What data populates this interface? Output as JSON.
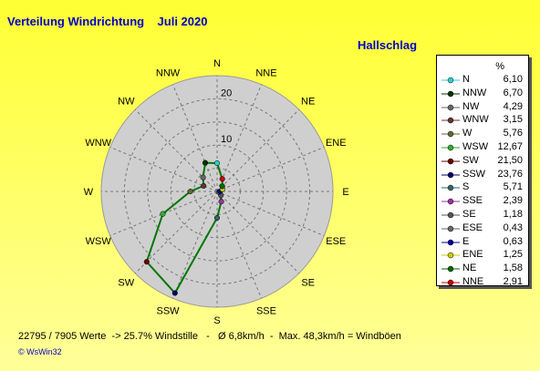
{
  "header": {
    "title": "Verteilung Windrichtung    Juli 2020",
    "station": "Hallschlag"
  },
  "chart_data": {
    "type": "polar-line",
    "directions": [
      "N",
      "NNW",
      "NW",
      "WNW",
      "W",
      "WSW",
      "SW",
      "SSW",
      "S",
      "SSE",
      "SE",
      "ESE",
      "E",
      "ENE",
      "NE",
      "NNE"
    ],
    "compass_labels": [
      "N",
      "NNE",
      "NE",
      "ENE",
      "E",
      "ESE",
      "SE",
      "SSE",
      "S",
      "SSW",
      "SW",
      "WSW",
      "W",
      "WNW",
      "NW",
      "NNW"
    ],
    "values": [
      6.1,
      6.7,
      4.29,
      3.15,
      5.76,
      12.67,
      21.5,
      23.76,
      5.71,
      2.39,
      1.18,
      0.43,
      0.63,
      1.25,
      1.58,
      2.91
    ],
    "unit": "%",
    "r_max": 25,
    "rings": [
      5,
      10,
      15,
      20,
      25
    ],
    "ring_labels": [
      {
        "value": 10,
        "label": "10"
      },
      {
        "value": 20,
        "label": "20"
      }
    ],
    "line_color": "#007700",
    "marker_colors": [
      "#33cccc",
      "#003300",
      "#666666",
      "#663333",
      "#666633",
      "#33aa33",
      "#660000",
      "#000066",
      "#336666",
      "#993399",
      "#555555",
      "#666666",
      "#000099",
      "#cccc00",
      "#006600",
      "#cc0000"
    ],
    "grid": true,
    "legend": "right"
  },
  "footer": {
    "text": "22795 / 7905 Werte  -> 25.7% Windstille   -   Ø 6,8km/h  -  Max. 48,3km/h = Windböen",
    "credit": "© WsWin32"
  }
}
